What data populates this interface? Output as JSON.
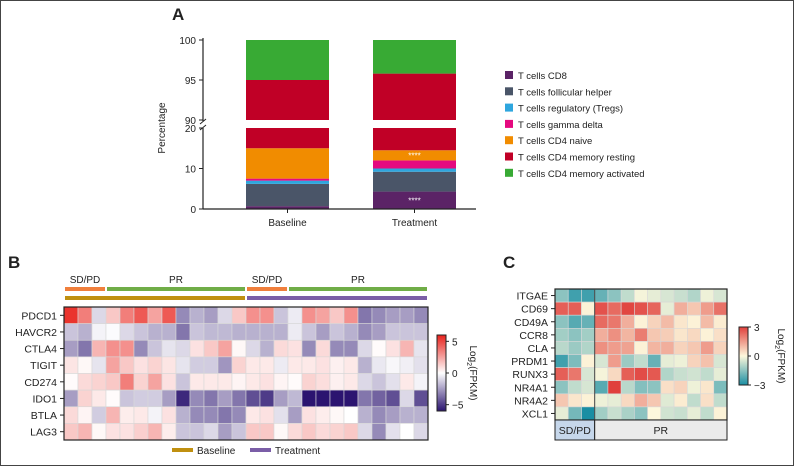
{
  "chart_data": [
    {
      "panel": "A",
      "type": "bar",
      "stacked": true,
      "ylabel": "Percentage",
      "xlabel": "",
      "categories": [
        "Baseline",
        "Treatment"
      ],
      "axis_break": {
        "lower": [
          0,
          20
        ],
        "upper": [
          90,
          100
        ]
      },
      "yticks_lower": [
        "0",
        "10",
        "20"
      ],
      "yticks_upper": [
        "90",
        "95",
        "100"
      ],
      "legend_position": "right",
      "series": [
        {
          "name": "T cells CD8",
          "color": "#5b2366",
          "values": [
            0.7,
            4.3
          ]
        },
        {
          "name": "T cells follicular helper",
          "color": "#4a5568",
          "values": [
            5.5,
            4.9
          ]
        },
        {
          "name": "T cells regulatory (Tregs)",
          "color": "#2ea6de",
          "values": [
            0.8,
            0.8
          ]
        },
        {
          "name": "T cells gamma delta",
          "color": "#e5097f",
          "values": [
            0.5,
            2.0
          ]
        },
        {
          "name": "T cells CD4 naive",
          "color": "#f18c00",
          "values": [
            7.5,
            2.5
          ]
        },
        {
          "name": "T cells CD4 memory resting",
          "color": "#c00026",
          "values": [
            80.0,
            81.3
          ]
        },
        {
          "name": "T cells CD4 memory activated",
          "color": "#38aa34",
          "values": [
            5.0,
            4.2
          ]
        }
      ],
      "annotations": [
        {
          "category": "Treatment",
          "series": "T cells CD8",
          "text": "****"
        },
        {
          "category": "Treatment",
          "series": "T cells CD4 naive",
          "text": "****"
        }
      ]
    },
    {
      "panel": "B",
      "type": "heatmap",
      "rows": [
        "PDCD1",
        "HAVCR2",
        "CTLA4",
        "TIGIT",
        "CD274",
        "IDO1",
        "BTLA",
        "LAG3"
      ],
      "column_groups": [
        {
          "label": "SD/PD",
          "count": 3,
          "color": "#f07f3c",
          "timepoint": "Baseline"
        },
        {
          "label": "PR",
          "count": 10,
          "color": "#70ad47",
          "timepoint": "Baseline"
        },
        {
          "label": "SD/PD",
          "count": 3,
          "color": "#f07f3c",
          "timepoint": "Treatment"
        },
        {
          "label": "PR",
          "count": 10,
          "color": "#70ad47",
          "timepoint": "Treatment"
        }
      ],
      "timepoints": [
        {
          "label": "Baseline",
          "color": "#c09010"
        },
        {
          "label": "Treatment",
          "color": "#7b5ea7"
        }
      ],
      "values": [
        [
          5.5,
          3.5,
          -1,
          1.5,
          3.5,
          4.5,
          2.5,
          4.5,
          -3,
          -2,
          -2.5,
          -1,
          1.5,
          3,
          3,
          -1.5,
          -0.5,
          3,
          2.5,
          1.5,
          3,
          -3.5,
          -3,
          -2.5,
          -2.5,
          -3
        ],
        [
          -1.5,
          -2,
          -0.3,
          -0.1,
          -1,
          -1.5,
          -2,
          -2,
          -3.5,
          -1.5,
          -1.8,
          -1.8,
          -2,
          -2,
          -2,
          -2,
          -0.5,
          -1.5,
          -2.5,
          -1.5,
          -2,
          -3,
          -2.5,
          -1.5,
          -1.5,
          -1.5
        ],
        [
          -2.5,
          -3.5,
          2,
          3,
          3,
          -3,
          -1.5,
          -0.7,
          -1,
          0.8,
          1.5,
          2.5,
          0.2,
          -1,
          -2,
          1,
          0.8,
          -3,
          1,
          -3,
          -3,
          -1,
          0.1,
          0.8,
          2,
          -0.7
        ],
        [
          0.7,
          0.2,
          -0.7,
          2.5,
          1.5,
          0.8,
          1.2,
          0.7,
          -0.7,
          -1.3,
          -1.3,
          -2.7,
          1.2,
          0.6,
          0.6,
          -0.5,
          0.6,
          0.6,
          0.8,
          0.4,
          0.6,
          -2,
          -0.6,
          -0.2,
          -0.4,
          -0.8
        ],
        [
          0.1,
          1,
          1.2,
          1.5,
          3.5,
          1.2,
          2.5,
          0.8,
          -1.5,
          0.6,
          0.6,
          0.6,
          0.3,
          0.6,
          0.8,
          0.3,
          0.1,
          1.2,
          0.9,
          0.4,
          0.6,
          -1,
          -1.5,
          -0.8,
          0.6,
          -0.3
        ],
        [
          -2.5,
          1.2,
          0.6,
          0.1,
          -1.5,
          -1.3,
          -1.3,
          -2.5,
          -5.5,
          -3,
          -3.5,
          -2.5,
          -3.5,
          -4.5,
          -5,
          -2.5,
          -1.8,
          -6,
          -6,
          -6,
          -6,
          -3.5,
          -4,
          -4.5,
          -1,
          -4.5
        ],
        [
          1,
          0.3,
          -1.3,
          2,
          0.5,
          0.6,
          -0.3,
          0.8,
          -2,
          -3,
          -3,
          -3.5,
          -3,
          0.6,
          0.8,
          -0.8,
          -2.5,
          0.8,
          0.5,
          0.2,
          0,
          -2,
          -3,
          -2.5,
          -2,
          -2
        ],
        [
          1.5,
          2,
          0.2,
          0.8,
          0.8,
          1.3,
          2,
          0.5,
          -1.5,
          -1.5,
          -1,
          -2.5,
          -1.5,
          1.5,
          1.5,
          0.2,
          1,
          1.5,
          1,
          1.2,
          1.5,
          -1,
          -3,
          -0.8,
          0,
          -1
        ]
      ],
      "colorbar": {
        "label": "Log2(FPKM)",
        "label_main": "Log",
        "label_sub": "2",
        "label_rest": "(FPKM)",
        "range": [
          -6,
          6
        ],
        "ticks": [
          "5",
          "0",
          "−5"
        ],
        "tick_values": [
          5,
          0,
          -5
        ],
        "low_color": "#2b1470",
        "mid_color": "#ffffff",
        "high_color": "#e8211b"
      }
    },
    {
      "panel": "C",
      "type": "heatmap",
      "rows": [
        "ITGAE",
        "CD69",
        "CD49A",
        "CCR8",
        "CLA",
        "PRDM1",
        "RUNX3",
        "NR4A1",
        "NR4A2",
        "XCL1"
      ],
      "column_groups": [
        {
          "label": "SD/PD",
          "count": 3,
          "color": "#c6d7eb"
        },
        {
          "label": "PR",
          "count": 10,
          "color": "#ebebeb"
        }
      ],
      "values": [
        [
          -1.5,
          -2.5,
          -2.5,
          -2,
          -1.5,
          -0.8,
          -0.1,
          -0.3,
          -0.5,
          -0.7,
          -1,
          -0.2,
          -0.5
        ],
        [
          2.5,
          2.5,
          0.1,
          2.7,
          2.3,
          2.9,
          2.7,
          2.4,
          -0.3,
          1.2,
          0.8,
          1.5,
          2.2
        ],
        [
          -1.5,
          -2.2,
          -2,
          2.3,
          2.1,
          1.2,
          0.1,
          0.6,
          1,
          0.3,
          0.1,
          1,
          0.2
        ],
        [
          -1.2,
          -1.5,
          -1.2,
          1.2,
          1.7,
          1.1,
          2,
          0.8,
          0.7,
          0.3,
          0.5,
          0.1,
          0.4
        ],
        [
          -0.9,
          -1.3,
          -1,
          1.7,
          1.5,
          1.4,
          0.1,
          1.1,
          1.2,
          0.6,
          0.8,
          1.5,
          0.6
        ],
        [
          -2.5,
          -1.7,
          0.1,
          -0.5,
          1.5,
          -1.3,
          -0.8,
          -2,
          -0.3,
          -0.2,
          0.6,
          0.9,
          -0.5
        ],
        [
          2.5,
          2.1,
          -0.5,
          -0.1,
          0.5,
          2.5,
          2.8,
          2.6,
          -1,
          -0.7,
          -0.6,
          -0.8,
          -0.3
        ],
        [
          -1.5,
          -0.8,
          -0.5,
          -2.2,
          3,
          -0.9,
          -1.6,
          -1.5,
          0.4,
          0.6,
          -0.2,
          0.3,
          -1.7
        ],
        [
          0.8,
          0.3,
          0.1,
          -0.2,
          -0.3,
          0.5,
          1.2,
          0.8,
          -0.4,
          0.2,
          -0.8,
          0.4,
          -0.8
        ],
        [
          -0.3,
          -1.8,
          -3,
          -1.2,
          -0.7,
          -1.1,
          -1.5,
          0,
          -0.6,
          -0.7,
          -0.3,
          -0.8,
          0.1
        ]
      ],
      "colorbar": {
        "label": "Log2(FPKM)",
        "label_main": "Log",
        "label_sub": "2",
        "label_rest": "(FPKM)",
        "range": [
          -3,
          3
        ],
        "ticks": [
          "3",
          "0",
          "−3"
        ],
        "tick_values": [
          3,
          0,
          -3
        ],
        "low_color": "#1a8ea3",
        "mid_color": "#fdf8dc",
        "high_color": "#e0403c"
      }
    }
  ],
  "panels": {
    "a": "A",
    "b": "B",
    "c": "C"
  }
}
